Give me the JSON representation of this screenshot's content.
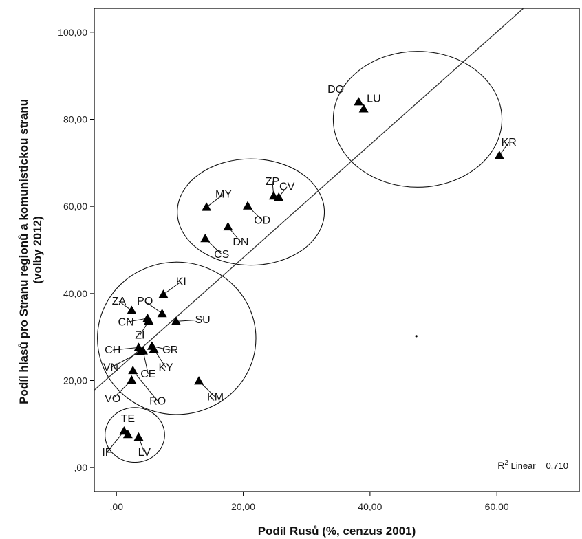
{
  "chart_data": {
    "type": "scatter",
    "xlabel": "Podíl Rusů (%, cenzus 2001)",
    "ylabel_lines": [
      "Podíl hlasů pro Stranu regionů a komunistickou stranu",
      "(volby 2012)"
    ],
    "xlim": [
      -3.5,
      73
    ],
    "ylim": [
      -5.5,
      105.5
    ],
    "xticks": [
      0,
      20,
      40,
      60
    ],
    "xtick_labels": [
      ",00",
      "20,00",
      "40,00",
      "60,00"
    ],
    "yticks": [
      0,
      20,
      40,
      60,
      80,
      100
    ],
    "ytick_labels": [
      ",00",
      "20,00",
      "40,00",
      "60,00",
      "80,00",
      "100,00"
    ],
    "grid": false,
    "marker": "triangle",
    "points": [
      {
        "label": "DO",
        "x": 38.2,
        "y": 84.0,
        "lx": 34.6,
        "ly": 86.9,
        "leader": false
      },
      {
        "label": "LU",
        "x": 39.0,
        "y": 82.4,
        "lx": 40.6,
        "ly": 84.7,
        "leader": false
      },
      {
        "label": "KR",
        "x": 60.4,
        "y": 71.7,
        "lx": 61.9,
        "ly": 74.7,
        "leader": true
      },
      {
        "label": "ZP",
        "x": 24.8,
        "y": 62.4,
        "lx": 24.6,
        "ly": 65.7,
        "leader": true
      },
      {
        "label": "CV",
        "x": 25.6,
        "y": 62.1,
        "lx": 26.9,
        "ly": 64.5,
        "leader": true
      },
      {
        "label": "MY",
        "x": 14.2,
        "y": 59.8,
        "lx": 16.9,
        "ly": 62.8,
        "leader": true
      },
      {
        "label": "OD",
        "x": 20.7,
        "y": 60.1,
        "lx": 23.0,
        "ly": 56.8,
        "leader": true
      },
      {
        "label": "DN",
        "x": 17.6,
        "y": 55.3,
        "lx": 19.6,
        "ly": 51.8,
        "leader": true
      },
      {
        "label": "CS",
        "x": 14.0,
        "y": 52.6,
        "lx": 16.6,
        "ly": 49.0,
        "leader": true
      },
      {
        "label": "KI",
        "x": 7.4,
        "y": 39.8,
        "lx": 10.2,
        "ly": 42.7,
        "leader": true
      },
      {
        "label": "ZA",
        "x": 2.4,
        "y": 36.1,
        "lx": 0.4,
        "ly": 38.2,
        "leader": true
      },
      {
        "label": "PO",
        "x": 7.2,
        "y": 35.4,
        "lx": 4.5,
        "ly": 38.2,
        "leader": true
      },
      {
        "label": "SU",
        "x": 9.4,
        "y": 33.6,
        "lx": 13.6,
        "ly": 34.0,
        "leader": true
      },
      {
        "label": "CN",
        "x": 4.9,
        "y": 34.3,
        "lx": 1.5,
        "ly": 33.4,
        "leader": true
      },
      {
        "label": "ZI",
        "x": 5.1,
        "y": 33.7,
        "lx": 3.7,
        "ly": 30.4,
        "leader": true
      },
      {
        "label": "CH",
        "x": 3.5,
        "y": 27.6,
        "lx": -0.6,
        "ly": 27.0,
        "leader": true
      },
      {
        "label": "CR",
        "x": 5.6,
        "y": 27.9,
        "lx": 8.5,
        "ly": 27.0,
        "leader": true
      },
      {
        "label": "VN",
        "x": 3.8,
        "y": 26.6,
        "lx": -0.9,
        "ly": 23.0,
        "leader": true
      },
      {
        "label": "KY",
        "x": 5.9,
        "y": 27.2,
        "lx": 7.8,
        "ly": 23.0,
        "leader": true
      },
      {
        "label": "CE",
        "x": 4.2,
        "y": 26.8,
        "lx": 5.0,
        "ly": 21.5,
        "leader": true
      },
      {
        "label": "VO",
        "x": 2.4,
        "y": 20.1,
        "lx": -0.6,
        "ly": 15.8,
        "leader": true
      },
      {
        "label": "RO",
        "x": 2.6,
        "y": 22.3,
        "lx": 6.5,
        "ly": 15.3,
        "leader": true
      },
      {
        "label": "KM",
        "x": 13.0,
        "y": 19.9,
        "lx": 15.6,
        "ly": 16.2,
        "leader": true
      },
      {
        "label": "TE",
        "x": 1.8,
        "y": 7.6,
        "lx": 1.8,
        "ly": 11.2,
        "leader": false
      },
      {
        "label": "IF",
        "x": 1.2,
        "y": 8.4,
        "lx": -1.5,
        "ly": 3.5,
        "leader": true
      },
      {
        "label": "LV",
        "x": 3.5,
        "y": 7.0,
        "lx": 4.4,
        "ly": 3.5,
        "leader": true
      }
    ],
    "fit_line": {
      "type": "linear",
      "x0": -3.5,
      "y0": 17.8,
      "x1": 64.2,
      "y1": 105.5
    },
    "annotation": {
      "text_main": "R",
      "text_sup": "2",
      "text_rest": " Linear = 0,710"
    },
    "ellipses": [
      {
        "cx": 47.5,
        "cy": 80.0,
        "rx": 13.3,
        "ry": 15.6
      },
      {
        "cx": 21.2,
        "cy": 58.7,
        "rx": 11.6,
        "ry": 12.2
      },
      {
        "cx": 9.5,
        "cy": 29.7,
        "rx": 12.5,
        "ry": 17.5
      },
      {
        "cx": 2.9,
        "cy": 7.5,
        "rx": 4.7,
        "ry": 6.3
      }
    ],
    "dot": {
      "x": 47.3,
      "y": 30.2
    }
  }
}
